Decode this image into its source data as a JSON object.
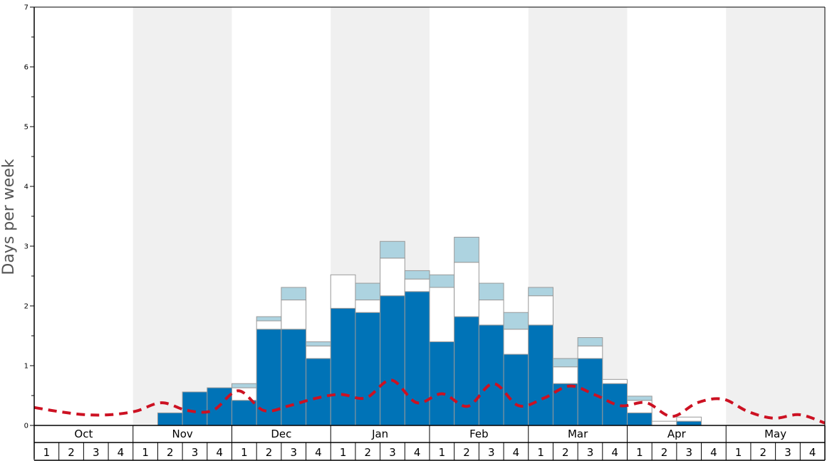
{
  "colors": {
    "band_shade": "#f0f0f0",
    "base": "#0073b7",
    "mid": "#ffffff",
    "top": "#add3e0",
    "bar_stroke": "#999999",
    "average_line": "#cc1122"
  },
  "chart_data": {
    "type": "bar",
    "stacked": true,
    "ylabel": "Days per week",
    "ylim": [
      0,
      7
    ],
    "yticks": [
      "0",
      "1",
      "2",
      "3",
      "4",
      "5",
      "6",
      "7"
    ],
    "months": [
      "Oct",
      "Nov",
      "Dec",
      "Jan",
      "Feb",
      "Mar",
      "Apr",
      "May"
    ],
    "week_labels": [
      "1",
      "2",
      "3",
      "4"
    ],
    "shaded_months": [
      "Nov",
      "Jan",
      "Mar",
      "May"
    ],
    "categories": [
      "Oct 1",
      "Oct 2",
      "Oct 3",
      "Oct 4",
      "Nov 1",
      "Nov 2",
      "Nov 3",
      "Nov 4",
      "Dec 1",
      "Dec 2",
      "Dec 3",
      "Dec 4",
      "Jan 1",
      "Jan 2",
      "Jan 3",
      "Jan 4",
      "Feb 1",
      "Feb 2",
      "Feb 3",
      "Feb 4",
      "Mar 1",
      "Mar 2",
      "Mar 3",
      "Mar 4",
      "Apr 1",
      "Apr 2",
      "Apr 3",
      "Apr 4",
      "May 1",
      "May 2",
      "May 3",
      "May 4"
    ],
    "series": [
      {
        "values": [
          0,
          0,
          0,
          0,
          0,
          0.21,
          0.56,
          0.63,
          0.42,
          1.61,
          1.61,
          1.12,
          1.96,
          1.89,
          2.17,
          2.24,
          1.4,
          1.82,
          1.68,
          1.19,
          1.68,
          0.7,
          1.12,
          0.7,
          0.21,
          0,
          0.07,
          0,
          0,
          0,
          0,
          0
        ]
      },
      {
        "values": [
          0,
          0,
          0,
          0,
          0,
          0,
          0,
          0,
          0.21,
          0.14,
          0.49,
          0.21,
          0.56,
          0.21,
          0.63,
          0.21,
          0.91,
          0.91,
          0.42,
          0.42,
          0.49,
          0.28,
          0.21,
          0.07,
          0.21,
          0.07,
          0.07,
          0,
          0,
          0,
          0,
          0
        ]
      },
      {
        "values": [
          0,
          0,
          0,
          0,
          0,
          0,
          0,
          0,
          0.07,
          0.07,
          0.21,
          0.07,
          0,
          0.28,
          0.28,
          0.14,
          0.21,
          0.42,
          0.28,
          0.28,
          0.14,
          0.14,
          0.14,
          0,
          0.07,
          0,
          0,
          0,
          0,
          0,
          0,
          0
        ]
      }
    ],
    "average_line": {
      "x": [
        0,
        1,
        2,
        3,
        4,
        5,
        6,
        7,
        8,
        9,
        10,
        11,
        12,
        13,
        14,
        15,
        16,
        17,
        18,
        19,
        20,
        21,
        22,
        23,
        24,
        25,
        26,
        27,
        28,
        29,
        30,
        31
      ],
      "y": [
        0.3,
        0.23,
        0.18,
        0.18,
        0.24,
        0.38,
        0.25,
        0.25,
        0.58,
        0.25,
        0.33,
        0.45,
        0.52,
        0.46,
        0.76,
        0.38,
        0.53,
        0.32,
        0.7,
        0.33,
        0.46,
        0.66,
        0.51,
        0.33,
        0.38,
        0.15,
        0.38,
        0.44,
        0.23,
        0.12,
        0.18,
        0.04
      ]
    }
  }
}
